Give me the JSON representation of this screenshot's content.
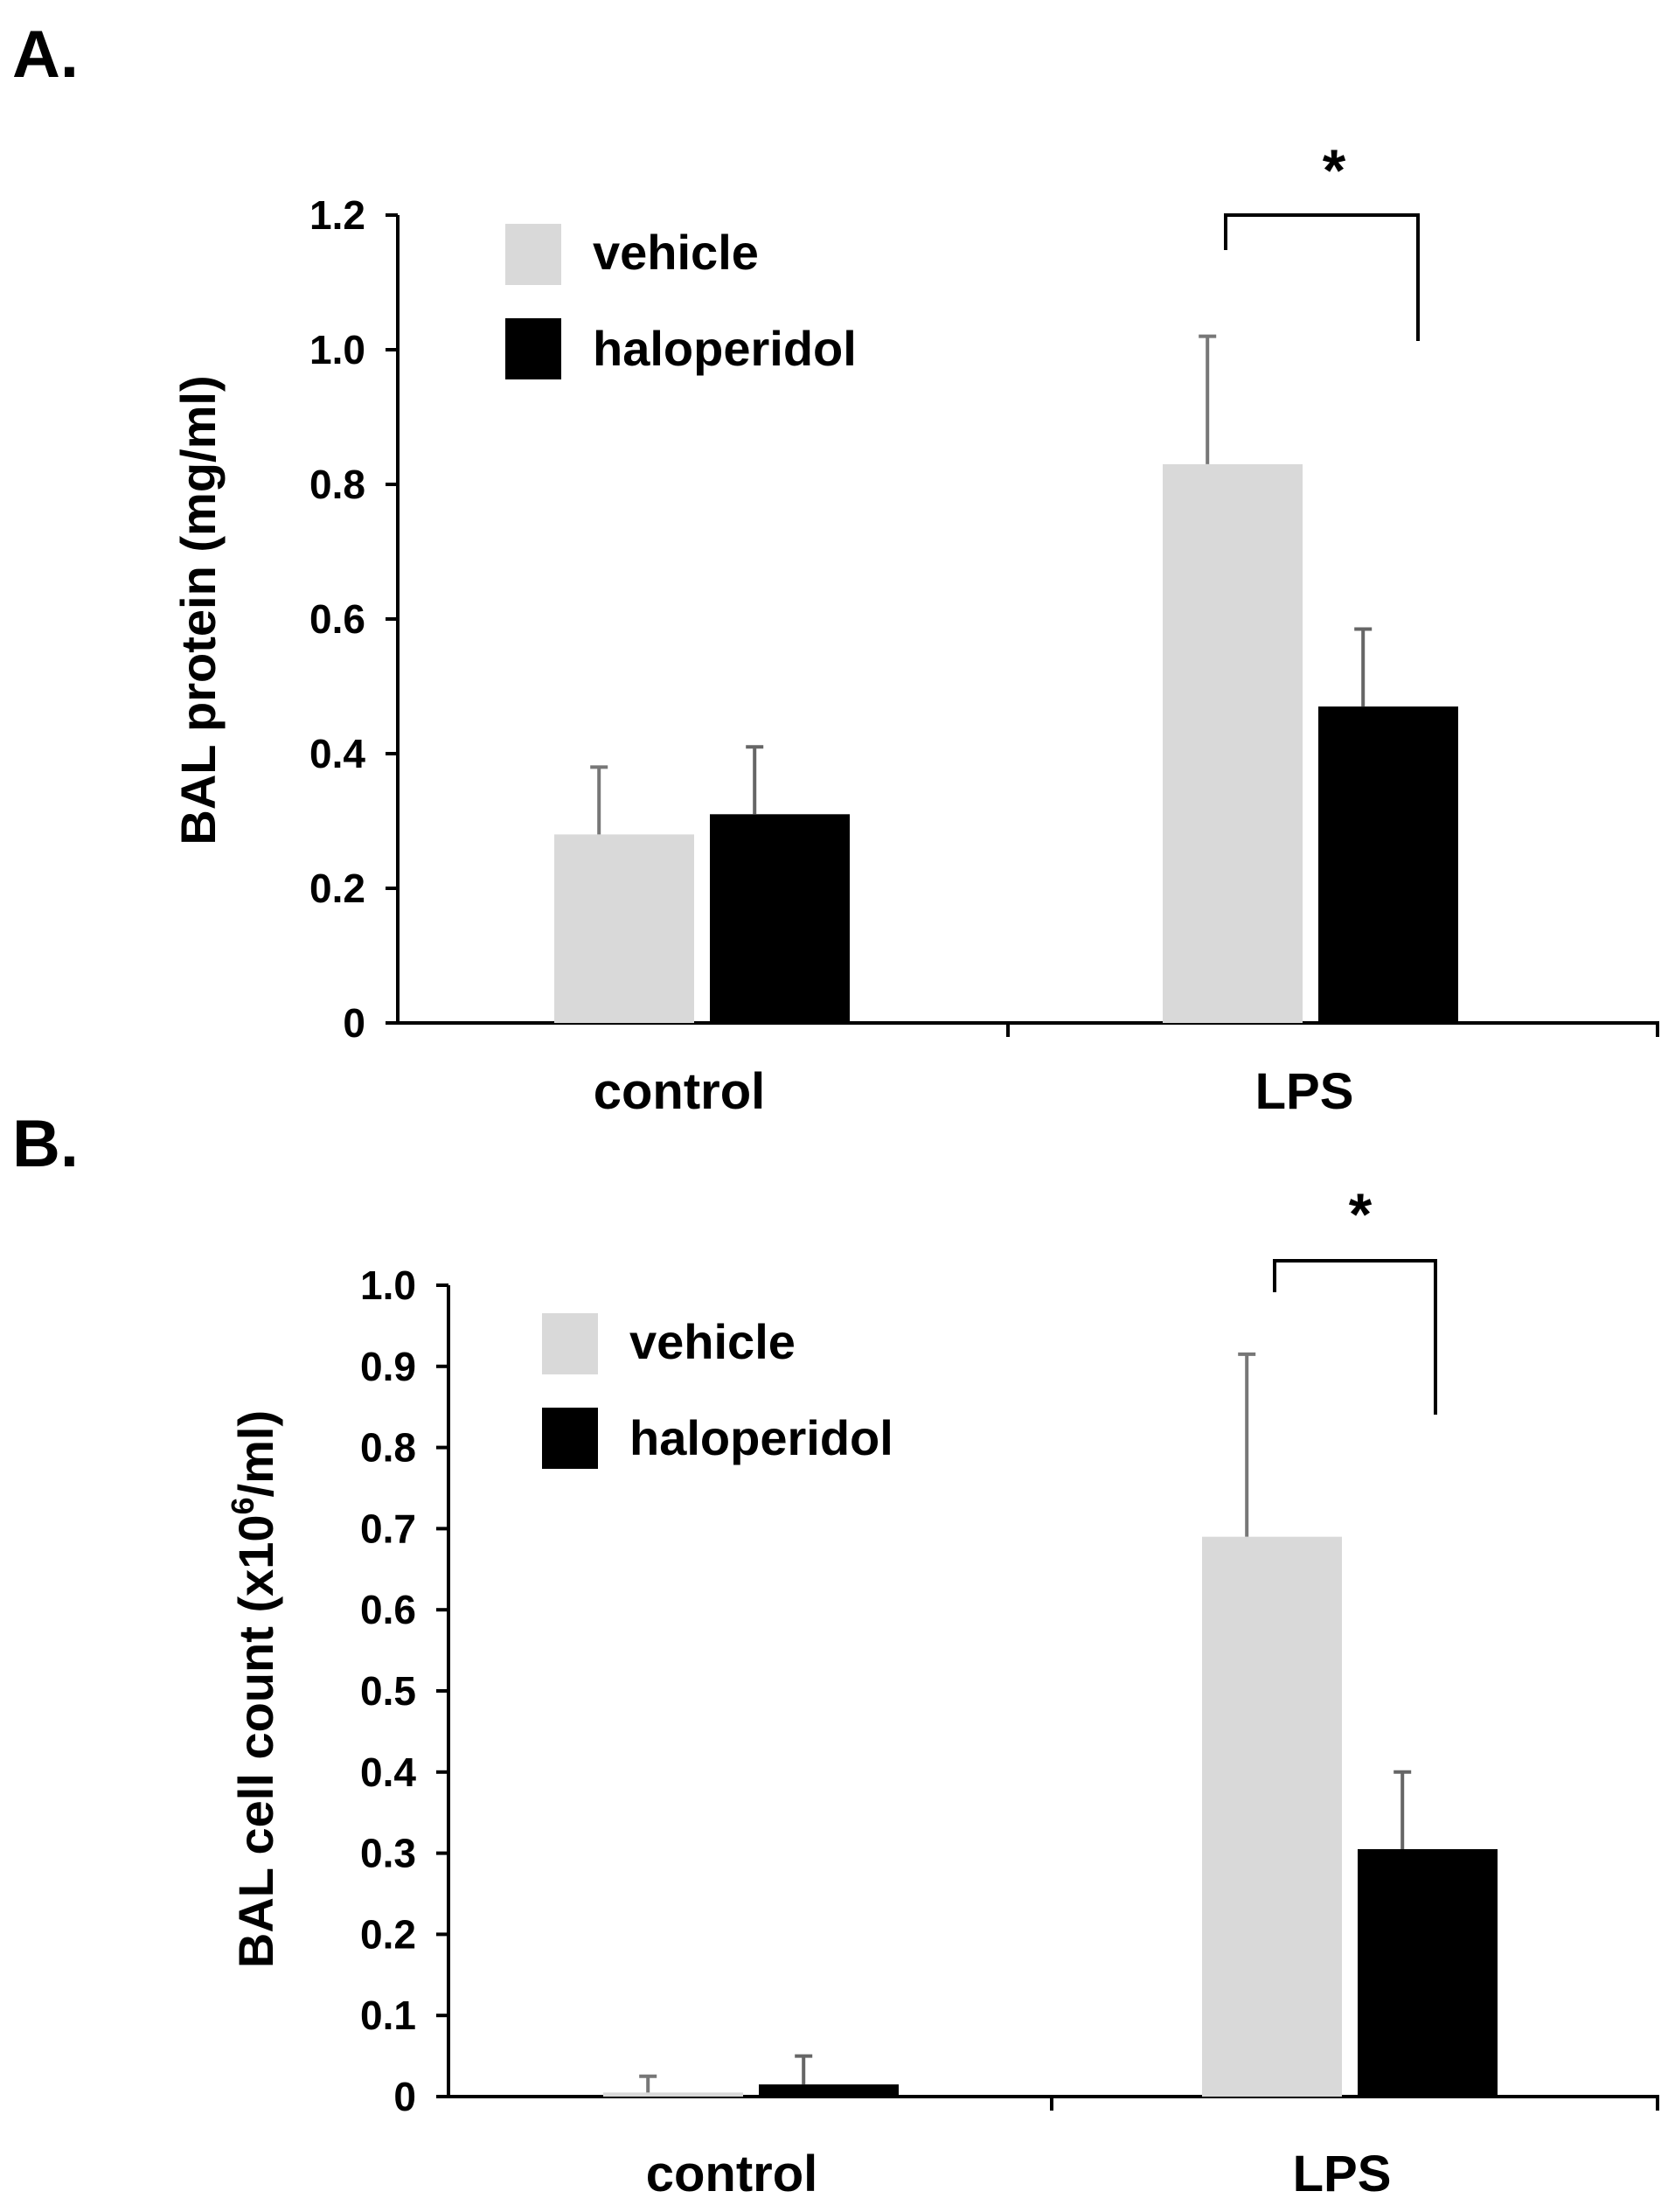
{
  "chart_data": [
    {
      "panel": "A.",
      "type": "bar",
      "title": "",
      "xlabel": "",
      "ylabel": "BAL protein (mg/ml)",
      "ylim": [
        0,
        1.2
      ],
      "yticks": [
        "0",
        "0.2",
        "0.4",
        "0.6",
        "0.8",
        "1.0",
        "1.2"
      ],
      "categories": [
        "control",
        "LPS"
      ],
      "series": [
        {
          "name": "vehicle",
          "color": "#d9d9d9",
          "values": [
            0.28,
            0.83
          ],
          "errors": [
            0.1,
            0.19
          ]
        },
        {
          "name": "haloperidol",
          "color": "#000000",
          "values": [
            0.31,
            0.47
          ],
          "errors": [
            0.1,
            0.115
          ]
        }
      ],
      "significance": {
        "category": "LPS",
        "label": "*"
      }
    },
    {
      "panel": "B.",
      "type": "bar",
      "title": "",
      "xlabel": "",
      "ylabel_main": "BAL cell count (x10",
      "ylabel_sup": "6",
      "ylabel_end": "/ml)",
      "ylim": [
        0,
        1.0
      ],
      "yticks": [
        "0",
        "0.1",
        "0.2",
        "0.3",
        "0.4",
        "0.5",
        "0.6",
        "0.7",
        "0.8",
        "0.9",
        "1.0"
      ],
      "categories": [
        "control",
        "LPS"
      ],
      "series": [
        {
          "name": "vehicle",
          "color": "#d9d9d9",
          "values": [
            0.005,
            0.69
          ],
          "errors": [
            0.02,
            0.225
          ]
        },
        {
          "name": "haloperidol",
          "color": "#000000",
          "values": [
            0.015,
            0.305
          ],
          "errors": [
            0.035,
            0.095
          ]
        }
      ],
      "significance": {
        "category": "LPS",
        "label": "*"
      }
    }
  ]
}
